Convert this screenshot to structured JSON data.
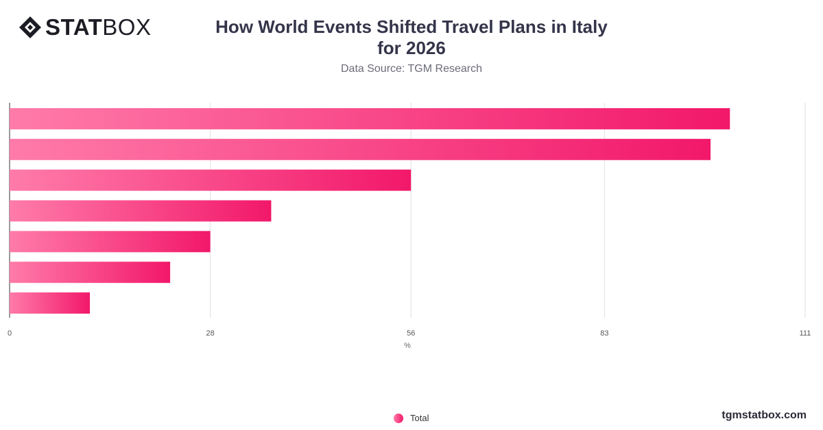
{
  "header": {
    "logo_bold": "STAT",
    "logo_light": "BOX",
    "title": "How World Events Shifted Travel Plans in Italy for 2026",
    "subtitle": "Data Source: TGM Research"
  },
  "legend": {
    "label": "Total",
    "color": "#f2186a"
  },
  "footer": {
    "brand": "tgmstatbox.com"
  },
  "colors": {
    "bar_start": "#ff7ba9",
    "bar_end": "#f2186a",
    "grid": "#e0e0e0"
  },
  "chart_data": {
    "type": "bar",
    "orientation": "horizontal",
    "categories": [
      "",
      "",
      "",
      "",
      "",
      "",
      ""
    ],
    "series": [
      {
        "name": "Total",
        "values": [
          100.5,
          97.8,
          56,
          36.5,
          28,
          22.4,
          11.2
        ]
      }
    ],
    "xlabel": "%",
    "ylabel": "",
    "xlim": [
      0,
      111
    ],
    "ticks": [
      "0",
      "28",
      "56",
      "83",
      "111"
    ],
    "grid": true,
    "legend_position": "bottom"
  }
}
